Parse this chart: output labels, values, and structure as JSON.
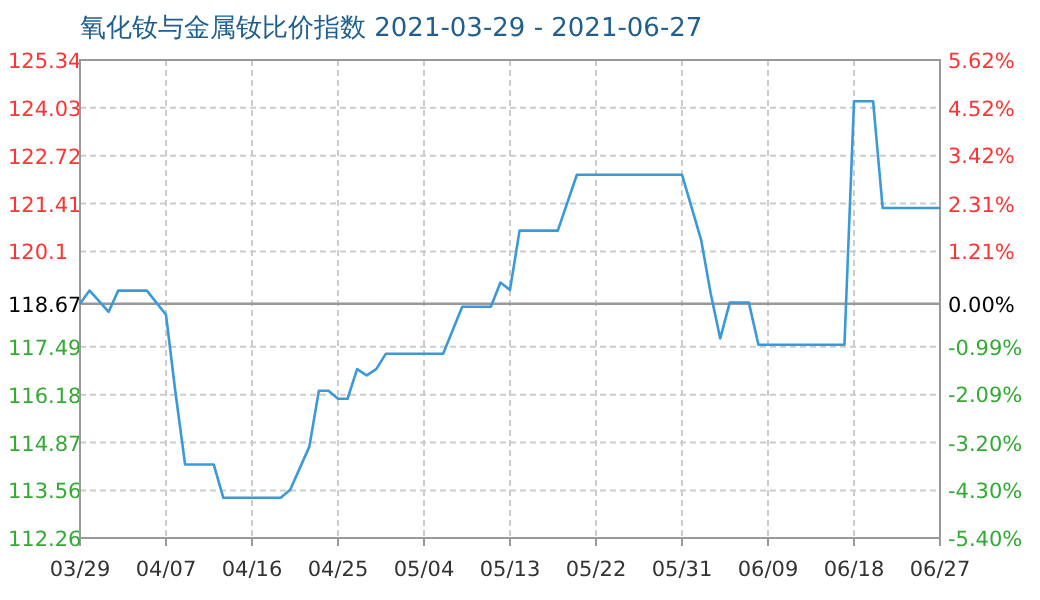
{
  "chart_data": {
    "type": "line",
    "title": "氧化钕与金属钕比价指数 2021-03-29 - 2021-06-27",
    "x": [
      "2021-03-29",
      "2021-03-30",
      "2021-03-31",
      "2021-04-01",
      "2021-04-02",
      "2021-04-05",
      "2021-04-07",
      "2021-04-08",
      "2021-04-09",
      "2021-04-12",
      "2021-04-13",
      "2021-04-19",
      "2021-04-20",
      "2021-04-22",
      "2021-04-23",
      "2021-04-24",
      "2021-04-25",
      "2021-04-26",
      "2021-04-27",
      "2021-04-28",
      "2021-04-29",
      "2021-04-30",
      "2021-05-06",
      "2021-05-08",
      "2021-05-11",
      "2021-05-12",
      "2021-05-13",
      "2021-05-14",
      "2021-05-18",
      "2021-05-20",
      "2021-05-31",
      "2021-06-02",
      "2021-06-03",
      "2021-06-04",
      "2021-06-05",
      "2021-06-07",
      "2021-06-08",
      "2021-06-17",
      "2021-06-18",
      "2021-06-20",
      "2021-06-21",
      "2021-06-27"
    ],
    "values": [
      118.67,
      119.03,
      118.74,
      118.45,
      119.03,
      119.03,
      118.37,
      116.22,
      114.27,
      114.27,
      113.36,
      113.36,
      113.58,
      114.76,
      116.29,
      116.29,
      116.07,
      116.07,
      116.88,
      116.71,
      116.88,
      117.3,
      117.3,
      118.59,
      118.59,
      119.25,
      119.05,
      120.67,
      120.67,
      122.2,
      122.2,
      120.42,
      118.96,
      117.72,
      118.7,
      118.7,
      117.55,
      117.55,
      124.21,
      124.21,
      121.29,
      121.29
    ],
    "color": "#3a9ad9",
    "xlim": [
      "2021-03-29",
      "2021-06-27"
    ],
    "xticks": [
      {
        "value": "2021-03-29",
        "label": "03/29"
      },
      {
        "value": "2021-04-07",
        "label": "04/07"
      },
      {
        "value": "2021-04-16",
        "label": "04/16"
      },
      {
        "value": "2021-04-25",
        "label": "04/25"
      },
      {
        "value": "2021-05-04",
        "label": "05/04"
      },
      {
        "value": "2021-05-13",
        "label": "05/13"
      },
      {
        "value": "2021-05-22",
        "label": "05/22"
      },
      {
        "value": "2021-05-31",
        "label": "05/31"
      },
      {
        "value": "2021-06-09",
        "label": "06/09"
      },
      {
        "value": "2021-06-18",
        "label": "06/18"
      },
      {
        "value": "2021-06-27",
        "label": "06/27"
      }
    ],
    "ylim": [
      112.26,
      125.34
    ],
    "yticks": [
      {
        "value": 112.26,
        "label": "112.26"
      },
      {
        "value": 113.56,
        "label": "113.56"
      },
      {
        "value": 114.87,
        "label": "114.87"
      },
      {
        "value": 116.18,
        "label": "116.18"
      },
      {
        "value": 117.49,
        "label": "117.49"
      },
      {
        "value": 118.67,
        "label": "118.67"
      },
      {
        "value": 120.1,
        "label": "120.1"
      },
      {
        "value": 121.41,
        "label": "121.41"
      },
      {
        "value": 122.72,
        "label": "122.72"
      },
      {
        "value": 124.03,
        "label": "124.03"
      },
      {
        "value": 125.34,
        "label": "125.34"
      }
    ],
    "y2lim": [
      -5.4,
      5.62
    ],
    "y2ticks": [
      {
        "value": -5.4,
        "label": "-5.40%"
      },
      {
        "value": -4.3,
        "label": "-4.30%"
      },
      {
        "value": -3.2,
        "label": "-3.20%"
      },
      {
        "value": -2.09,
        "label": "-2.09%"
      },
      {
        "value": -0.99,
        "label": "-0.99%"
      },
      {
        "value": 0,
        "label": "0.00%"
      },
      {
        "value": 1.21,
        "label": "1.21%"
      },
      {
        "value": 2.31,
        "label": "2.31%"
      },
      {
        "value": 3.42,
        "label": "3.42%"
      },
      {
        "value": 4.52,
        "label": "4.52%"
      },
      {
        "value": 5.62,
        "label": "5.62%"
      }
    ],
    "grid": true,
    "ref_lines": [
      {
        "axis": "y",
        "value": 118.67,
        "color": "#999999"
      }
    ]
  }
}
